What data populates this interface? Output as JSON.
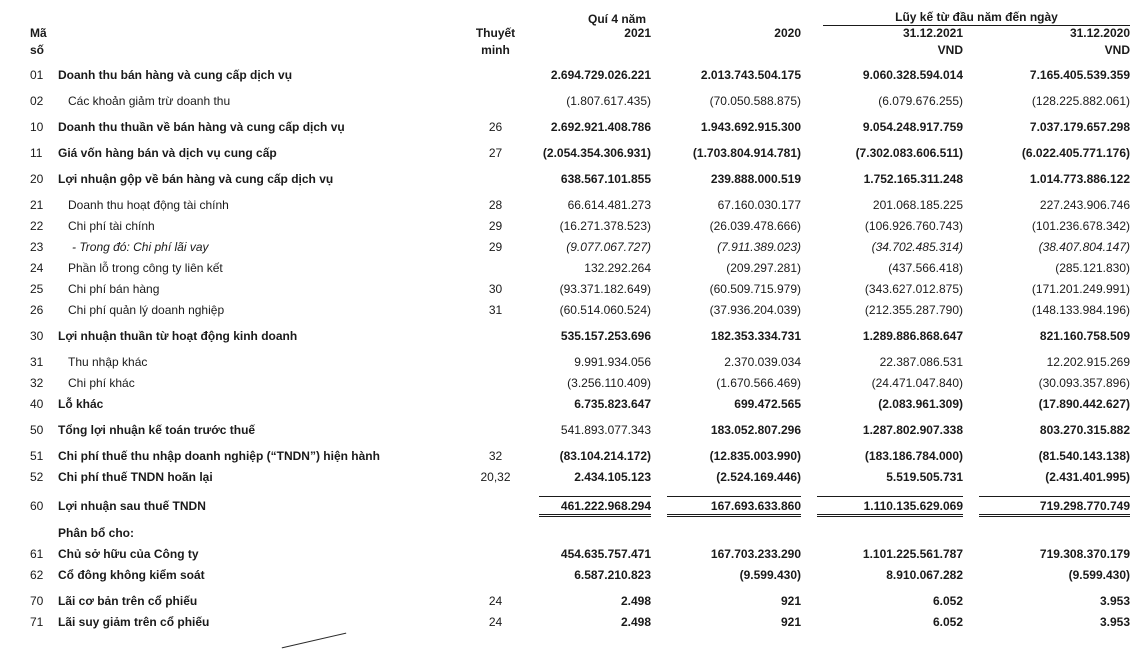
{
  "document": {
    "type": "income-statement-scan",
    "language": "vi",
    "text_color": "#1a1a1a",
    "background_color": "#ffffff"
  },
  "table": {
    "headers": {
      "q4_group": "Quí 4 năm",
      "ytd_group": "Lũy kế từ đầu năm đến ngày",
      "code_line1": "Mã",
      "code_line2": "số",
      "note_line1": "Thuyết",
      "note_line2": "minh",
      "col_q4_2021": "2021",
      "col_q4_2020": "2020",
      "col_ytd_2021": "31.12.2021",
      "col_ytd_2020": "31.12.2020",
      "currency": "VND"
    },
    "rows": [
      {
        "c": "01",
        "l": "Doanh thu bán hàng và cung cấp dịch vụ",
        "n": "",
        "v": [
          "2.694.729.026.221",
          "2.013.743.504.175",
          "9.060.328.594.014",
          "7.165.405.539.359"
        ],
        "b": true,
        "gap": true
      },
      {
        "c": "02",
        "l": "Các khoản giảm trừ doanh thu",
        "n": "",
        "v": [
          "(1.807.617.435)",
          "(70.050.588.875)",
          "(6.079.676.255)",
          "(128.225.882.061)"
        ],
        "ind": 1,
        "gap": true
      },
      {
        "c": "10",
        "l": "Doanh thu thuần về bán hàng và cung cấp dịch vụ",
        "n": "26",
        "v": [
          "2.692.921.408.786",
          "1.943.692.915.300",
          "9.054.248.917.759",
          "7.037.179.657.298"
        ],
        "b": true,
        "gap": true
      },
      {
        "c": "11",
        "l": "Giá vốn hàng bán và dịch vụ cung cấp",
        "n": "27",
        "v": [
          "(2.054.354.306.931)",
          "(1.703.804.914.781)",
          "(7.302.083.606.511)",
          "(6.022.405.771.176)"
        ],
        "b": true,
        "gap": true
      },
      {
        "c": "20",
        "l": "Lợi nhuận gộp về bán hàng và cung cấp dịch vụ",
        "n": "",
        "v": [
          "638.567.101.855",
          "239.888.000.519",
          "1.752.165.311.248",
          "1.014.773.886.122"
        ],
        "b": true,
        "gap": true
      },
      {
        "c": "21",
        "l": "Doanh thu hoạt động tài chính",
        "n": "28",
        "v": [
          "66.614.481.273",
          "67.160.030.177",
          "201.068.185.225",
          "227.243.906.746"
        ],
        "ind": 1,
        "gap": true
      },
      {
        "c": "22",
        "l": "Chi phí tài chính",
        "n": "29",
        "v": [
          "(16.271.378.523)",
          "(26.039.478.666)",
          "(106.926.760.743)",
          "(101.236.678.342)"
        ],
        "ind": 1
      },
      {
        "c": "23",
        "l": "- Trong đó: Chi phí lãi vay",
        "n": "29",
        "v": [
          "(9.077.067.727)",
          "(7.911.389.023)",
          "(34.702.485.314)",
          "(38.407.804.147)"
        ],
        "i": true,
        "ind": 2
      },
      {
        "c": "24",
        "l": "Phần lỗ trong công ty liên kết",
        "n": "",
        "v": [
          "132.292.264",
          "(209.297.281)",
          "(437.566.418)",
          "(285.121.830)"
        ],
        "ind": 1
      },
      {
        "c": "25",
        "l": "Chi phí bán hàng",
        "n": "30",
        "v": [
          "(93.371.182.649)",
          "(60.509.715.979)",
          "(343.627.012.875)",
          "(171.201.249.991)"
        ],
        "ind": 1
      },
      {
        "c": "26",
        "l": "Chi phí quản lý doanh nghiệp",
        "n": "31",
        "v": [
          "(60.514.060.524)",
          "(37.936.204.039)",
          "(212.355.287.790)",
          "(148.133.984.196)"
        ],
        "ind": 1
      },
      {
        "c": "30",
        "l": "Lợi nhuận thuần từ hoạt động kinh doanh",
        "n": "",
        "v": [
          "535.157.253.696",
          "182.353.334.731",
          "1.289.886.868.647",
          "821.160.758.509"
        ],
        "b": true,
        "gap": true
      },
      {
        "c": "31",
        "l": "Thu nhập khác",
        "n": "",
        "v": [
          "9.991.934.056",
          "2.370.039.034",
          "22.387.086.531",
          "12.202.915.269"
        ],
        "ind": 1,
        "gap": true
      },
      {
        "c": "32",
        "l": "Chi phí khác",
        "n": "",
        "v": [
          "(3.256.110.409)",
          "(1.670.566.469)",
          "(24.471.047.840)",
          "(30.093.357.896)"
        ],
        "ind": 1
      },
      {
        "c": "40",
        "l": "Lỗ khác",
        "n": "",
        "v": [
          "6.735.823.647",
          "699.472.565",
          "(2.083.961.309)",
          "(17.890.442.627)"
        ],
        "b": true
      },
      {
        "c": "50",
        "l": "Tổng lợi nhuận kế toán trước thuế",
        "n": "",
        "v": [
          "541.893.077.343",
          "183.052.807.296",
          "1.287.802.907.338",
          "803.270.315.882"
        ],
        "b": true,
        "v1r": true,
        "gap": true
      },
      {
        "c": "51",
        "l": "Chi phí thuế thu nhập doanh nghiệp (“TNDN”) hiện hành",
        "n": "32",
        "v": [
          "(83.104.214.172)",
          "(12.835.003.990)",
          "(183.186.784.000)",
          "(81.540.143.138)"
        ],
        "b": true,
        "gap": true
      },
      {
        "c": "52",
        "l": "Chi phí thuế TNDN hoãn lại",
        "n": "20,32",
        "v": [
          "2.434.105.123",
          "(2.524.169.446)",
          "5.519.505.731",
          "(2.431.401.995)"
        ],
        "b": true
      },
      {
        "c": "60",
        "l": "Lợi nhuận sau thuế TNDN",
        "n": "",
        "v": [
          "461.222.968.294",
          "167.693.633.860",
          "1.110.135.629.069",
          "719.298.770.749"
        ],
        "b": true,
        "rule": true,
        "gap": true
      },
      {
        "c": "",
        "l": "Phân bổ cho:",
        "n": "",
        "v": [
          "",
          "",
          "",
          ""
        ],
        "b": true,
        "sec": true,
        "gap": true
      },
      {
        "c": "61",
        "l": "Chủ sở hữu của Công ty",
        "n": "",
        "v": [
          "454.635.757.471",
          "167.703.233.290",
          "1.101.225.561.787",
          "719.308.370.179"
        ],
        "b": true
      },
      {
        "c": "62",
        "l": "Cổ đông không kiểm soát",
        "n": "",
        "v": [
          "6.587.210.823",
          "(9.599.430)",
          "8.910.067.282",
          "(9.599.430)"
        ],
        "b": true
      },
      {
        "c": "70",
        "l": "Lãi cơ bản trên cổ phiếu",
        "n": "24",
        "v": [
          "2.498",
          "921",
          "6.052",
          "3.953"
        ],
        "b": true,
        "gap": true
      },
      {
        "c": "71",
        "l": "Lãi suy giảm trên cổ phiếu",
        "n": "24",
        "v": [
          "2.498",
          "921",
          "6.052",
          "3.953"
        ],
        "b": true
      }
    ]
  }
}
